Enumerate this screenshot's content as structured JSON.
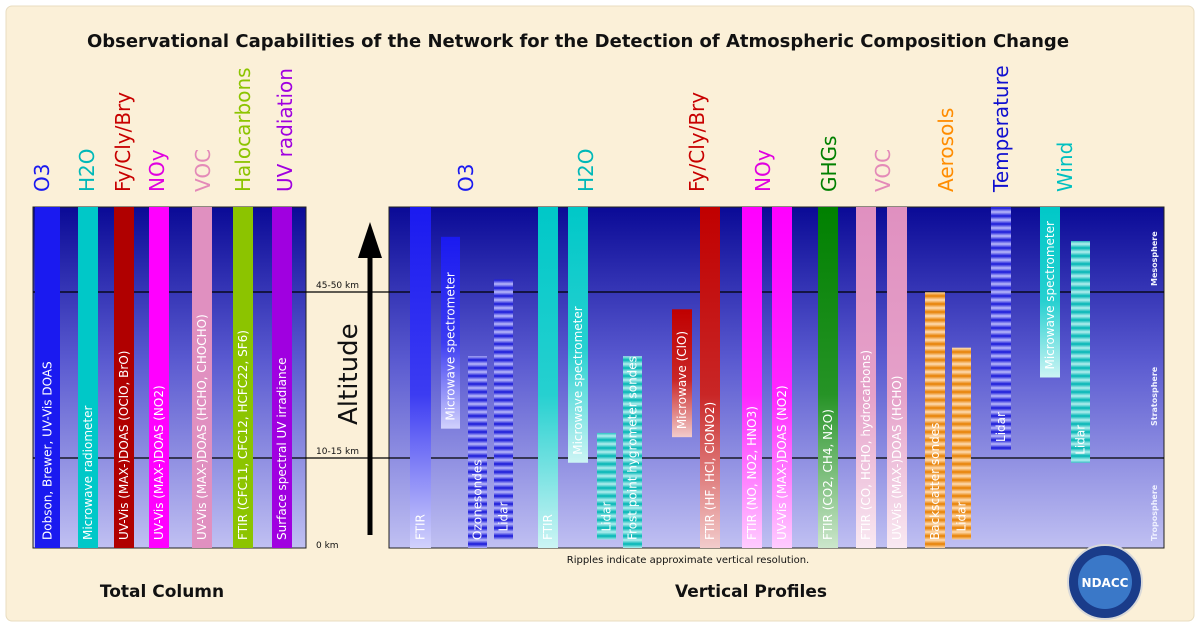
{
  "title": "Observational Capabilities of the Network for the Detection of Atmospheric Composition Change",
  "sections": {
    "total_column": "Total Column",
    "vertical_profiles": "Vertical Profiles"
  },
  "altitude_label": "Altitude",
  "altitude_ticks": [
    "45-50 km",
    "10-15 km",
    "0 km"
  ],
  "layers": [
    "Mesosphere",
    "Stratosphere",
    "Troposphere"
  ],
  "footnote": "Ripples indicate approximate vertical resolution.",
  "logo_text": "NDACC",
  "colors": {
    "frame": "#fbf0d8",
    "panel_top": "#0c0c9a",
    "panel_bottom": "#bcbcf0"
  },
  "categories": [
    {
      "id": "o3_tc",
      "label": "O3",
      "color": "#1a1af0"
    },
    {
      "id": "h2o_tc",
      "label": "H2O",
      "color": "#00b8b8"
    },
    {
      "id": "fcl_tc",
      "label": "Fy/Cly/Bry",
      "color": "#c80000"
    },
    {
      "id": "noy_tc",
      "label": "NOy",
      "color": "#e000e0"
    },
    {
      "id": "voc_tc",
      "label": "VOC",
      "color": "#e48ab8"
    },
    {
      "id": "halo_tc",
      "label": "Halocarbons",
      "color": "#8cc400"
    },
    {
      "id": "uv_tc",
      "label": "UV radiation",
      "color": "#a000e0"
    },
    {
      "id": "o3_vp",
      "label": "O3",
      "color": "#1a1af0"
    },
    {
      "id": "h2o_vp",
      "label": "H2O",
      "color": "#00b8b8"
    },
    {
      "id": "fcl_vp",
      "label": "Fy/Cly/Bry",
      "color": "#c80000"
    },
    {
      "id": "noy_vp",
      "label": "NOy",
      "color": "#e000e0"
    },
    {
      "id": "ghg_vp",
      "label": "GHGs",
      "color": "#008000"
    },
    {
      "id": "voc_vp",
      "label": "VOC",
      "color": "#e48ab8"
    },
    {
      "id": "aer_vp",
      "label": "Aerosols",
      "color": "#ff8c00"
    },
    {
      "id": "temp_vp",
      "label": "Temperature",
      "color": "#1010d0"
    },
    {
      "id": "wind_vp",
      "label": "Wind",
      "color": "#00c0c0"
    }
  ],
  "instruments": [
    {
      "label": "Dobson, Brewer, UV-Vis DOAS",
      "color": "#1a1af0",
      "style": "solid",
      "alt": [
        0,
        80
      ]
    },
    {
      "label": "Microwave radiometer",
      "color": "#00c8c8",
      "style": "solid",
      "alt": [
        0,
        80
      ]
    },
    {
      "label": "UV-Vis (MAX-)DOAS (OClO, BrO)",
      "color": "#b00000",
      "style": "solid",
      "alt": [
        0,
        80
      ]
    },
    {
      "label": "UV-Vis (MAX-)DOAS (NO2)",
      "color": "#ff00ff",
      "style": "solid",
      "alt": [
        0,
        80
      ]
    },
    {
      "label": "UV-Vis (MAX-)DOAS (HCHO, CHOCHO)",
      "color": "#e090c0",
      "style": "solid",
      "alt": [
        0,
        80
      ]
    },
    {
      "label": "FTIR (CFC11, CFC12, HCFC22, SF6)",
      "color": "#8cc400",
      "style": "solid",
      "alt": [
        0,
        80
      ]
    },
    {
      "label": "Surface spectral UV irradiance",
      "color": "#a000e0",
      "style": "solid",
      "alt": [
        0,
        80
      ]
    },
    {
      "label": "FTIR",
      "color": "#1a1af0",
      "style": "fade",
      "alt": [
        0,
        80
      ]
    },
    {
      "label": "Microwave spectrometer",
      "color": "#1a1af0",
      "style": "fade",
      "alt": [
        28,
        73
      ]
    },
    {
      "label": "Ozonesondes",
      "color": "#1a1af0",
      "style": "ripple",
      "alt": [
        0,
        45
      ]
    },
    {
      "label": "Lidar",
      "color": "#1a1af0",
      "style": "ripple",
      "alt": [
        2,
        63
      ]
    },
    {
      "label": "FTIR",
      "color": "#00c8c8",
      "style": "fade",
      "alt": [
        0,
        80
      ]
    },
    {
      "label": "Microwave spectrometer",
      "color": "#00c8c8",
      "style": "fade",
      "alt": [
        20,
        80
      ]
    },
    {
      "label": "Lidar",
      "color": "#00c8c8",
      "style": "ripple",
      "alt": [
        2,
        27
      ]
    },
    {
      "label": "Frost point hygrometer sondes",
      "color": "#00c8c8",
      "style": "ripple",
      "alt": [
        0,
        45
      ]
    },
    {
      "label": "Microwave (ClO)",
      "color": "#c00000",
      "style": "fade",
      "alt": [
        26,
        56
      ]
    },
    {
      "label": "FTIR (HF, HCl, ClONO2)",
      "color": "#c00000",
      "style": "fade",
      "alt": [
        0,
        80
      ]
    },
    {
      "label": "FTIR (NO, NO2, HNO3)",
      "color": "#ff00ff",
      "style": "fade",
      "alt": [
        0,
        80
      ]
    },
    {
      "label": "UV-Vis (MAX-)DOAS (NO2)",
      "color": "#ff00ff",
      "style": "fade",
      "alt": [
        0,
        80
      ]
    },
    {
      "label": "FTIR (CO2, CH4, N2O)",
      "color": "#008000",
      "style": "fade",
      "alt": [
        0,
        80
      ]
    },
    {
      "label": "FTIR (CO, HCHO, hydrocarbons)",
      "color": "#e090c0",
      "style": "fade",
      "alt": [
        0,
        80
      ]
    },
    {
      "label": "UV-Vis (MAX-)DOAS (HCHO)",
      "color": "#e090c0",
      "style": "fade",
      "alt": [
        0,
        80
      ]
    },
    {
      "label": "Backscatter sondes",
      "color": "#ff8c00",
      "style": "ripple",
      "alt": [
        0,
        60
      ]
    },
    {
      "label": "Lidar",
      "color": "#ff8c00",
      "style": "ripple",
      "alt": [
        2,
        47
      ]
    },
    {
      "label": "Lidar",
      "color": "#1a1af0",
      "style": "ripple",
      "alt": [
        23,
        80
      ]
    },
    {
      "label": "Microwave spectrometer",
      "color": "#00c8c8",
      "style": "fade",
      "alt": [
        40,
        80
      ]
    },
    {
      "label": "Lidar",
      "color": "#00c8c8",
      "style": "ripple",
      "alt": [
        20,
        72
      ]
    }
  ]
}
